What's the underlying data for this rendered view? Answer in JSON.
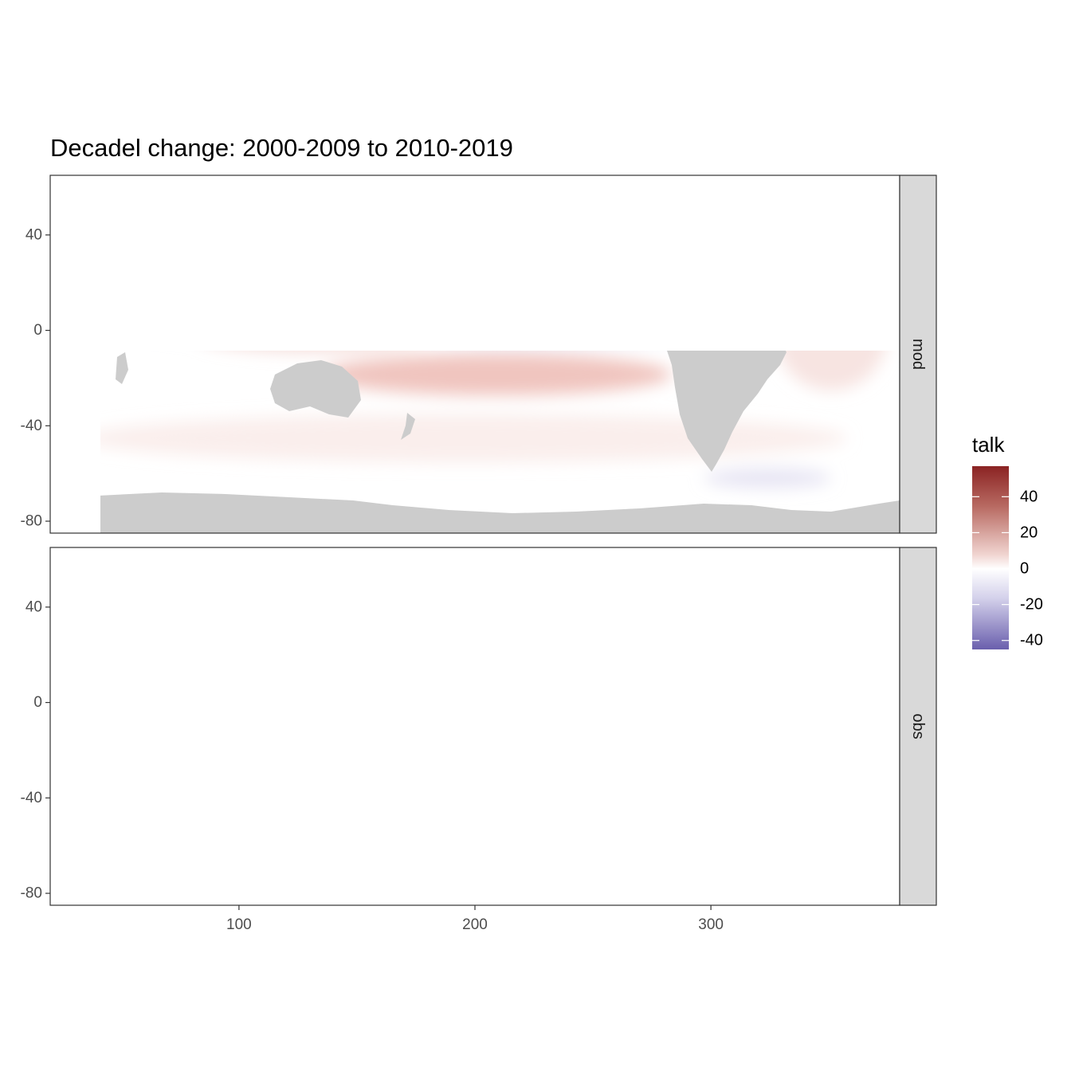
{
  "title": "Decadel change: 2000-2009 to 2010-2019",
  "chart_data": {
    "type": "heatmap",
    "title": "Decadel change: 2000-2009 to 2010-2019",
    "xlabel": "",
    "ylabel": "",
    "xlim": [
      20,
      380
    ],
    "ylim": [
      -85,
      65
    ],
    "x_ticks": [
      100,
      200,
      300
    ],
    "x_tick_labels": [
      "100",
      "200",
      "300"
    ],
    "y_ticks": [
      40,
      0,
      -40,
      -80
    ],
    "y_tick_labels": [
      "40",
      "0",
      "-40",
      "-80"
    ],
    "panels": [
      {
        "name": "mod",
        "strip_label": "mod"
      },
      {
        "name": "obs",
        "strip_label": "obs"
      }
    ],
    "colorbar": {
      "title": "talk",
      "limits": [
        -45,
        57
      ],
      "ticks": [
        40,
        20,
        0,
        -20,
        -40
      ],
      "tick_labels": [
        "40",
        "20",
        "0",
        "-20",
        "-40"
      ],
      "low_color": "#6a5fad",
      "mid_color": "#ffffff",
      "high_color": "#8b2323"
    },
    "land_color": "#cccccc",
    "grid": false
  }
}
